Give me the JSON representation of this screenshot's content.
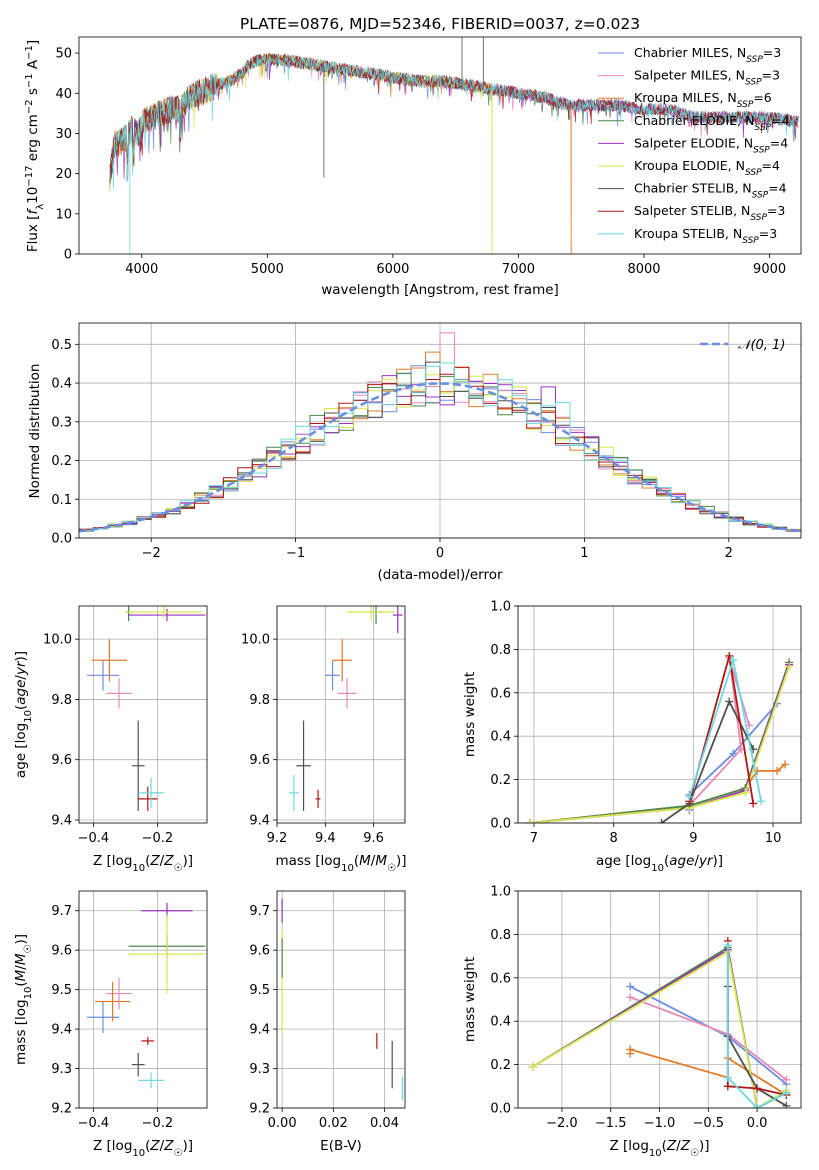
{
  "palette": {
    "Chabrier MILES": "#6a8ee0",
    "Salpeter MILES": "#e889b6",
    "Kroupa MILES": "#e07b2a",
    "Chabrier ELODIE": "#4a8a4a",
    "Salpeter ELODIE": "#9b30c0",
    "Kroupa ELODIE": "#d7e84a",
    "Chabrier STELIB": "#505050",
    "Salpeter STELIB": "#b01515",
    "Kroupa STELIB": "#6cd8e0"
  },
  "chart_data": [
    {
      "id": "spectrum",
      "type": "line",
      "title": "PLATE=0876, MJD=52346, FIBERID=0037, z=0.023",
      "xlabel": "wavelength [Angstrom, rest frame]",
      "ylabel": "Flux [fλ10⁻¹⁷ erg cm⁻² s⁻¹ A⁻¹]",
      "xlim": [
        3500,
        9250
      ],
      "ylim": [
        0,
        54
      ],
      "xticks": [
        4000,
        5000,
        6000,
        7000,
        8000,
        9000
      ],
      "yticks": [
        0,
        10,
        20,
        30,
        40,
        50
      ],
      "grid": false,
      "legend_position": "top-right",
      "legend": [
        {
          "label": "Chabrier MILES, N",
          "sub": "SSP",
          "value": "=3",
          "series": "Chabrier MILES"
        },
        {
          "label": "Salpeter MILES, N",
          "sub": "SSP",
          "value": "=3",
          "series": "Salpeter MILES"
        },
        {
          "label": "Kroupa MILES, N",
          "sub": "SSP",
          "value": "=6",
          "series": "Kroupa MILES"
        },
        {
          "label": "Chabrier ELODIE, N",
          "sub": "SSP",
          "value": "=4",
          "series": "Chabrier ELODIE"
        },
        {
          "label": "Salpeter ELODIE, N",
          "sub": "SSP",
          "value": "=4",
          "series": "Salpeter ELODIE"
        },
        {
          "label": "Kroupa ELODIE, N",
          "sub": "SSP",
          "value": "=4",
          "series": "Kroupa ELODIE"
        },
        {
          "label": "Chabrier STELIB, N",
          "sub": "SSP",
          "value": "=4",
          "series": "Chabrier STELIB"
        },
        {
          "label": "Salpeter STELIB, N",
          "sub": "SSP",
          "value": "=3",
          "series": "Salpeter STELIB"
        },
        {
          "label": "Kroupa STELIB, N",
          "sub": "SSP",
          "value": "=3",
          "series": "Kroupa STELIB"
        }
      ],
      "envelope": [
        [
          3740,
          18
        ],
        [
          3780,
          27
        ],
        [
          3830,
          28
        ],
        [
          3880,
          29
        ],
        [
          3920,
          31
        ],
        [
          3970,
          30
        ],
        [
          4020,
          33
        ],
        [
          4080,
          34
        ],
        [
          4150,
          35
        ],
        [
          4220,
          36
        ],
        [
          4300,
          36
        ],
        [
          4380,
          39
        ],
        [
          4450,
          40
        ],
        [
          4520,
          41
        ],
        [
          4600,
          42
        ],
        [
          4700,
          43
        ],
        [
          4800,
          45
        ],
        [
          4850,
          47
        ],
        [
          4900,
          48
        ],
        [
          5000,
          48.5
        ],
        [
          5200,
          48
        ],
        [
          5400,
          47
        ],
        [
          5600,
          46
        ],
        [
          5800,
          45
        ],
        [
          6000,
          44
        ],
        [
          6200,
          43
        ],
        [
          6400,
          43
        ],
        [
          6600,
          42
        ],
        [
          6800,
          41
        ],
        [
          7000,
          40
        ],
        [
          7200,
          39
        ],
        [
          7400,
          37
        ],
        [
          7600,
          37
        ],
        [
          7800,
          37
        ],
        [
          8000,
          36
        ],
        [
          8200,
          36
        ],
        [
          8400,
          34
        ],
        [
          8600,
          34
        ],
        [
          8800,
          34
        ],
        [
          9000,
          34
        ],
        [
          9200,
          33
        ]
      ],
      "features": [
        {
          "series": "Kroupa STELIB",
          "x": 3905,
          "y": 0
        },
        {
          "series": "Chabrier STELIB",
          "x": 5450,
          "y": 19
        },
        {
          "series": "Kroupa ELODIE",
          "x": 6790,
          "y": 0
        },
        {
          "series": "Kroupa MILES",
          "x": 7420,
          "y": 0
        },
        {
          "series": "Chabrier STELIB",
          "x": 6550,
          "y": 54
        },
        {
          "series": "Chabrier STELIB",
          "x": 6720,
          "y": 54
        }
      ]
    },
    {
      "id": "residuals",
      "type": "histogram",
      "xlabel": "(data-model)/error",
      "ylabel": "Normed distribution",
      "xlim": [
        -2.5,
        2.5
      ],
      "ylim": [
        0,
        0.555
      ],
      "xticks": [
        -2,
        -1,
        0,
        1,
        2
      ],
      "yticks": [
        0.0,
        0.1,
        0.2,
        0.3,
        0.4,
        0.5
      ],
      "grid": true,
      "bin_width": 0.1,
      "legend": [
        {
          "label": "𝒩(0, 1)"
        }
      ],
      "legend_position": "top-right",
      "reference_curve": "normal(0, 1)",
      "peak_bins": [
        {
          "series": "Salpeter MILES",
          "x": 0.05,
          "y": 0.53
        },
        {
          "series": "Kroupa MILES",
          "x": -0.05,
          "y": 0.48
        },
        {
          "series": "Salpeter ELODIE",
          "x": 0.75,
          "y": 0.39
        },
        {
          "series": "Kroupa STELIB",
          "x": 0.85,
          "y": 0.35
        }
      ]
    },
    {
      "id": "age-vs-Z",
      "type": "scatter",
      "xlabel": "Z [log10(Z/Z☉)]",
      "ylabel": "age  [log10(age/yr)]",
      "xlim": [
        -0.445,
        -0.045
      ],
      "ylim": [
        9.39,
        10.11
      ],
      "xticks": [
        -0.4,
        -0.2
      ],
      "yticks": [
        9.4,
        9.6,
        9.8,
        10.0
      ],
      "grid": true,
      "points": [
        {
          "series": "Chabrier MILES",
          "x": -0.37,
          "y": 9.88,
          "xerr": 0.05,
          "yerr": 0.05
        },
        {
          "series": "Salpeter MILES",
          "x": -0.32,
          "y": 9.82,
          "xerr": 0.04,
          "yerr": 0.05
        },
        {
          "series": "Kroupa MILES",
          "x": -0.35,
          "y": 9.93,
          "xerr": 0.055,
          "yerr": 0.07
        },
        {
          "series": "Chabrier ELODIE",
          "x": -0.29,
          "y": 10.09,
          "xerr": 0.01,
          "yerr": 0.03
        },
        {
          "series": "Salpeter ELODIE",
          "x": -0.17,
          "y": 10.08,
          "xerr": 0.12,
          "yerr": 0.02
        },
        {
          "series": "Kroupa ELODIE",
          "x": -0.18,
          "y": 10.09,
          "xerr": 0.12,
          "yerr": 0.02
        },
        {
          "series": "Chabrier STELIB",
          "x": -0.26,
          "y": 9.58,
          "xerr": 0.02,
          "yerr": 0.15
        },
        {
          "series": "Salpeter STELIB",
          "x": -0.23,
          "y": 9.47,
          "xerr": 0.03,
          "yerr": 0.04
        },
        {
          "series": "Kroupa STELIB",
          "x": -0.22,
          "y": 9.49,
          "xerr": 0.04,
          "yerr": 0.05
        }
      ]
    },
    {
      "id": "age-vs-mass",
      "type": "scatter",
      "xlabel": "mass [log10(M/M☉)]",
      "ylabel": "",
      "xlim": [
        9.2,
        9.73
      ],
      "ylim": [
        9.39,
        10.11
      ],
      "xticks": [
        9.2,
        9.4,
        9.6
      ],
      "yticks": [
        9.4,
        9.6,
        9.8,
        10.0
      ],
      "grid": true,
      "points": [
        {
          "series": "Chabrier MILES",
          "x": 9.43,
          "y": 9.88,
          "xerr": 0.03,
          "yerr": 0.05
        },
        {
          "series": "Salpeter MILES",
          "x": 9.49,
          "y": 9.82,
          "xerr": 0.04,
          "yerr": 0.05
        },
        {
          "series": "Kroupa MILES",
          "x": 9.47,
          "y": 9.93,
          "xerr": 0.04,
          "yerr": 0.07
        },
        {
          "series": "Chabrier ELODIE",
          "x": 9.61,
          "y": 10.09,
          "xerr": 0.03,
          "yerr": 0.04
        },
        {
          "series": "Salpeter ELODIE",
          "x": 9.7,
          "y": 10.08,
          "xerr": 0.02,
          "yerr": 0.06
        },
        {
          "series": "Kroupa ELODIE",
          "x": 9.59,
          "y": 10.09,
          "xerr": 0.1,
          "yerr": 0.03
        },
        {
          "series": "Chabrier STELIB",
          "x": 9.31,
          "y": 9.58,
          "xerr": 0.03,
          "yerr": 0.15
        },
        {
          "series": "Salpeter STELIB",
          "x": 9.37,
          "y": 9.47,
          "xerr": 0.01,
          "yerr": 0.03
        },
        {
          "series": "Kroupa STELIB",
          "x": 9.27,
          "y": 9.49,
          "xerr": 0.02,
          "yerr": 0.06
        }
      ]
    },
    {
      "id": "weight-vs-age",
      "type": "line",
      "xlabel": "age  [log10(age/yr)]",
      "ylabel": "mass weight",
      "xlim": [
        6.8,
        10.35
      ],
      "ylim": [
        0,
        1.0
      ],
      "xticks": [
        7,
        8,
        9,
        10
      ],
      "yticks": [
        0.0,
        0.2,
        0.4,
        0.6,
        0.8,
        1.0
      ],
      "grid": true,
      "series": [
        {
          "name": "Chabrier MILES",
          "points": [
            [
              8.95,
              0.06
            ],
            [
              8.95,
              0.13
            ],
            [
              9.5,
              0.32
            ],
            [
              10.05,
              0.55
            ]
          ]
        },
        {
          "name": "Salpeter MILES",
          "points": [
            [
              8.95,
              0.08
            ],
            [
              9.6,
              0.34
            ],
            [
              9.45,
              0.76
            ],
            [
              9.7,
              0.45
            ]
          ]
        },
        {
          "name": "Kroupa MILES",
          "points": [
            [
              6.95,
              0.0
            ],
            [
              8.95,
              0.08
            ],
            [
              9.65,
              0.16
            ],
            [
              9.8,
              0.24
            ],
            [
              10.05,
              0.24
            ],
            [
              10.15,
              0.27
            ]
          ]
        },
        {
          "name": "Chabrier ELODIE",
          "points": [
            [
              6.95,
              0.0
            ],
            [
              8.95,
              0.08
            ],
            [
              9.65,
              0.16
            ],
            [
              10.2,
              0.74
            ]
          ]
        },
        {
          "name": "Salpeter ELODIE",
          "points": [
            [
              6.95,
              0.0
            ],
            [
              8.95,
              0.07
            ],
            [
              9.65,
              0.15
            ],
            [
              10.2,
              0.73
            ]
          ]
        },
        {
          "name": "Kroupa ELODIE",
          "points": [
            [
              6.95,
              0.0
            ],
            [
              8.95,
              0.07
            ],
            [
              9.65,
              0.14
            ],
            [
              10.2,
              0.72
            ]
          ]
        },
        {
          "name": "Chabrier STELIB",
          "points": [
            [
              8.6,
              0.0
            ],
            [
              8.95,
              0.09
            ],
            [
              9.45,
              0.56
            ],
            [
              9.75,
              0.34
            ]
          ]
        },
        {
          "name": "Salpeter STELIB",
          "points": [
            [
              8.95,
              0.1
            ],
            [
              9.45,
              0.77
            ],
            [
              9.75,
              0.09
            ]
          ]
        },
        {
          "name": "Kroupa STELIB",
          "points": [
            [
              8.95,
              0.12
            ],
            [
              9.5,
              0.75
            ],
            [
              9.85,
              0.1
            ]
          ]
        }
      ]
    },
    {
      "id": "mass-vs-Z",
      "type": "scatter",
      "xlabel": "Z [log10(Z/Z☉)]",
      "ylabel": "mass [log10(M/M☉)]",
      "xlim": [
        -0.445,
        -0.045
      ],
      "ylim": [
        9.2,
        9.75
      ],
      "xticks": [
        -0.4,
        -0.2
      ],
      "yticks": [
        9.2,
        9.3,
        9.4,
        9.5,
        9.6,
        9.7
      ],
      "grid": true,
      "points": [
        {
          "series": "Chabrier MILES",
          "x": -0.37,
          "y": 9.43,
          "xerr": 0.05,
          "yerr": 0.04
        },
        {
          "series": "Salpeter MILES",
          "x": -0.32,
          "y": 9.49,
          "xerr": 0.04,
          "yerr": 0.04
        },
        {
          "series": "Kroupa MILES",
          "x": -0.34,
          "y": 9.47,
          "xerr": 0.055,
          "yerr": 0.05
        },
        {
          "series": "Chabrier ELODIE",
          "x": -0.17,
          "y": 9.61,
          "xerr": 0.12,
          "yerr": 0.03
        },
        {
          "series": "Salpeter ELODIE",
          "x": -0.17,
          "y": 9.7,
          "xerr": 0.08,
          "yerr": 0.02
        },
        {
          "series": "Kroupa ELODIE",
          "x": -0.17,
          "y": 9.59,
          "xerr": 0.12,
          "yerr": 0.1
        },
        {
          "series": "Chabrier STELIB",
          "x": -0.26,
          "y": 9.31,
          "xerr": 0.02,
          "yerr": 0.03
        },
        {
          "series": "Salpeter STELIB",
          "x": -0.23,
          "y": 9.37,
          "xerr": 0.02,
          "yerr": 0.01
        },
        {
          "series": "Kroupa STELIB",
          "x": -0.22,
          "y": 9.27,
          "xerr": 0.04,
          "yerr": 0.02
        }
      ]
    },
    {
      "id": "mass-vs-EBV",
      "type": "scatter",
      "xlabel": "E(B-V)",
      "ylabel": "",
      "xlim": [
        -0.002,
        0.048
      ],
      "ylim": [
        9.2,
        9.75
      ],
      "xticks": [
        0.0,
        0.02,
        0.04
      ],
      "yticks": [
        9.2,
        9.3,
        9.4,
        9.5,
        9.6,
        9.7
      ],
      "grid": true,
      "points": [
        {
          "series": "Salpeter ELODIE",
          "x": 0.0,
          "y": 9.7,
          "xerr": 0,
          "yerr": 0.03
        },
        {
          "series": "Kroupa ELODIE",
          "x": 0.0,
          "y": 9.52,
          "xerr": 0,
          "yerr": 0.13
        },
        {
          "series": "Chabrier ELODIE",
          "x": 0.0,
          "y": 9.58,
          "xerr": 0,
          "yerr": 0.05
        },
        {
          "series": "Salpeter STELIB",
          "x": 0.037,
          "y": 9.37,
          "xerr": 0,
          "yerr": 0.02
        },
        {
          "series": "Chabrier STELIB",
          "x": 0.043,
          "y": 9.31,
          "xerr": 0,
          "yerr": 0.06
        },
        {
          "series": "Kroupa STELIB",
          "x": 0.047,
          "y": 9.25,
          "xerr": 0,
          "yerr": 0.03
        }
      ]
    },
    {
      "id": "weight-vs-Z",
      "type": "line",
      "xlabel": "Z [log10(Z/Z☉)]",
      "ylabel": "mass weight",
      "xlim": [
        -2.45,
        0.45
      ],
      "ylim": [
        0,
        1.0
      ],
      "xticks": [
        -2.0,
        -1.5,
        -1.0,
        -0.5,
        0.0
      ],
      "yticks": [
        0.0,
        0.2,
        0.4,
        0.6,
        0.8,
        1.0
      ],
      "grid": true,
      "series": [
        {
          "name": "Chabrier MILES",
          "points": [
            [
              -1.3,
              0.56
            ],
            [
              -0.3,
              0.33
            ],
            [
              0.3,
              0.11
            ]
          ]
        },
        {
          "name": "Salpeter MILES",
          "points": [
            [
              -1.3,
              0.51
            ],
            [
              -0.3,
              0.34
            ],
            [
              0.3,
              0.13
            ]
          ]
        },
        {
          "name": "Kroupa MILES",
          "points": [
            [
              -1.3,
              0.25
            ],
            [
              -1.3,
              0.27
            ],
            [
              -0.3,
              0.14
            ],
            [
              -0.3,
              0.23
            ],
            [
              0.3,
              0.06
            ]
          ]
        },
        {
          "name": "Chabrier ELODIE",
          "points": [
            [
              -2.3,
              0.19
            ],
            [
              -0.3,
              0.74
            ],
            [
              0.0,
              0.0
            ],
            [
              0.3,
              0.07
            ]
          ]
        },
        {
          "name": "Salpeter ELODIE",
          "points": [
            [
              -2.3,
              0.19
            ],
            [
              -0.3,
              0.73
            ],
            [
              0.0,
              0.0
            ],
            [
              0.3,
              0.07
            ]
          ]
        },
        {
          "name": "Kroupa ELODIE",
          "points": [
            [
              -2.3,
              0.19
            ],
            [
              -0.3,
              0.72
            ],
            [
              0.0,
              0.0
            ],
            [
              0.3,
              0.08
            ]
          ]
        },
        {
          "name": "Chabrier STELIB",
          "points": [
            [
              -0.3,
              0.56
            ],
            [
              -0.3,
              0.33
            ],
            [
              0.0,
              0.09
            ],
            [
              0.3,
              0.01
            ]
          ]
        },
        {
          "name": "Salpeter STELIB",
          "points": [
            [
              -0.3,
              0.77
            ],
            [
              -0.3,
              0.1
            ],
            [
              0.0,
              0.09
            ],
            [
              0.3,
              0.06
            ]
          ]
        },
        {
          "name": "Kroupa STELIB",
          "points": [
            [
              -0.3,
              0.75
            ],
            [
              -0.3,
              0.14
            ],
            [
              0.0,
              0.0
            ],
            [
              0.3,
              0.07
            ]
          ]
        }
      ]
    }
  ]
}
